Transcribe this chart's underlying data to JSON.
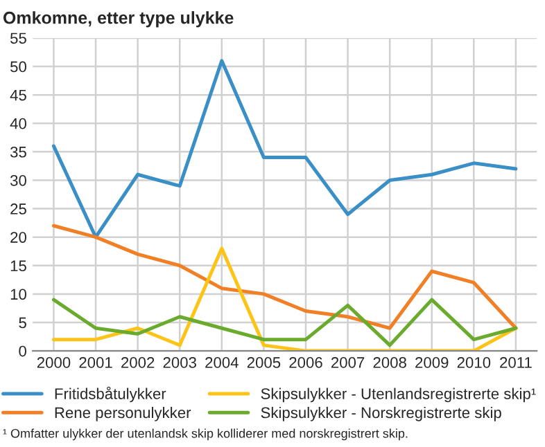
{
  "chart_data": {
    "type": "line",
    "title": "Omkomne, etter type ulykke",
    "categories": [
      "2000",
      "2001",
      "2002",
      "2003",
      "2004",
      "2005",
      "2006",
      "2007",
      "2008",
      "2009",
      "2010",
      "2011"
    ],
    "series": [
      {
        "name": "Fritidsbåtulykker",
        "color": "#3a8fc6",
        "values": [
          36,
          20,
          31,
          29,
          51,
          34,
          34,
          24,
          30,
          31,
          33,
          32
        ]
      },
      {
        "name": "Rene personulykker",
        "color": "#f07f26",
        "values": [
          22,
          20,
          17,
          15,
          11,
          10,
          7,
          6,
          4,
          14,
          12,
          4
        ]
      },
      {
        "name": "Skipsulykker - Utenlandsregistrerte skip¹",
        "color": "#fcc419",
        "values": [
          2,
          2,
          4,
          1,
          18,
          1,
          0,
          0,
          0,
          0,
          0,
          4
        ]
      },
      {
        "name": "Skipsulykker - Norskregistrerte skip",
        "color": "#6aab2e",
        "values": [
          9,
          4,
          3,
          6,
          4,
          2,
          2,
          8,
          1,
          9,
          2,
          4
        ]
      }
    ],
    "ylim": [
      0,
      55
    ],
    "yticks": [
      0,
      5,
      10,
      15,
      20,
      25,
      30,
      35,
      40,
      45,
      50,
      55
    ],
    "grid": true,
    "legend": "bottom",
    "marker": "none",
    "line_style": "solid",
    "annotations": [
      "¹ Omfatter ulykker der utenlandsk skip kolliderer med norskregistrert skip."
    ]
  }
}
